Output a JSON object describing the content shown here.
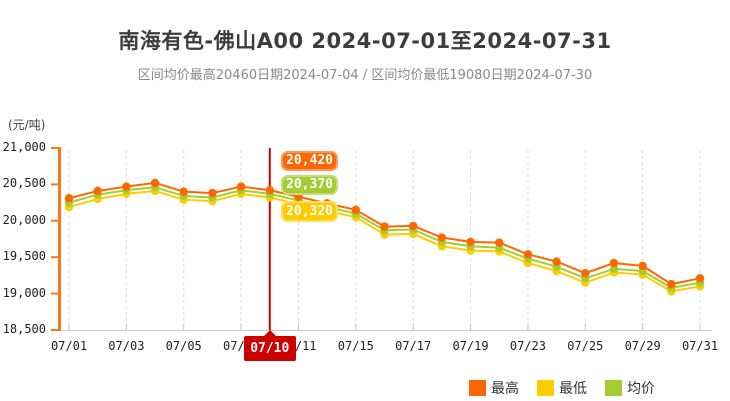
{
  "header": {
    "title": "南海有色-佛山A00 2024-07-01至2024-07-31",
    "subtitle": "区间均价最高20460日期2024-07-04 / 区间均价最低19080日期2024-07-30"
  },
  "chart_data": {
    "type": "line",
    "title": "南海有色-佛山A00 2024-07-01至2024-07-31",
    "unit_label": "(元/吨)",
    "x": [
      "07/01",
      "07/02",
      "07/03",
      "07/04",
      "07/05",
      "07/08",
      "07/09",
      "07/10",
      "07/11",
      "07/12",
      "07/15",
      "07/16",
      "07/17",
      "07/18",
      "07/19",
      "07/22",
      "07/23",
      "07/24",
      "07/25",
      "07/26",
      "07/29",
      "07/30",
      "07/31"
    ],
    "x_tick_labels_shown": [
      "07/01",
      "07/03",
      "07/05",
      "07/09",
      "07/11",
      "07/15",
      "07/17",
      "07/19",
      "07/23",
      "07/25",
      "07/29",
      "07/31"
    ],
    "series": [
      {
        "name": "最高",
        "color": "#ff6600",
        "values": [
          20310,
          20410,
          20470,
          20520,
          20400,
          20380,
          20470,
          20420,
          20330,
          20240,
          20150,
          19920,
          19930,
          19770,
          19710,
          19700,
          19540,
          19440,
          19280,
          19420,
          19380,
          19130,
          19210
        ]
      },
      {
        "name": "最低",
        "color": "#ffcc00",
        "values": [
          20190,
          20300,
          20370,
          20410,
          20290,
          20270,
          20370,
          20320,
          20230,
          20140,
          20050,
          19810,
          19820,
          19650,
          19590,
          19580,
          19420,
          19310,
          19150,
          19290,
          19260,
          19030,
          19100
        ]
      },
      {
        "name": "均价",
        "color": "#a3cd32",
        "values": [
          20250,
          20360,
          20420,
          20460,
          20340,
          20320,
          20420,
          20370,
          20280,
          20190,
          20100,
          19870,
          19880,
          19710,
          19650,
          19630,
          19480,
          19370,
          19210,
          19340,
          19310,
          19080,
          19150
        ]
      }
    ],
    "ylim": [
      18500,
      21000
    ],
    "y_ticks": [
      21000,
      20500,
      20000,
      19500,
      19000,
      18500
    ],
    "grid": "vertical-dashed",
    "legend_position": "bottom-right",
    "colors": {
      "axis": "#ff7519",
      "x_axis": "#c8c8c8",
      "grid": "#dcdcdc",
      "highlight_line": "#cc0000"
    },
    "highlight": {
      "x_label": "07/10",
      "最高": "20,420",
      "均价": "20,370",
      "最低": "20,320"
    }
  },
  "tooltip": {
    "date": "07/10",
    "high": "20,420",
    "avg": "20,370",
    "low": "20,320"
  },
  "legend": [
    {
      "label": "最高",
      "color": "#ff6600"
    },
    {
      "label": "最低",
      "color": "#ffcc00"
    },
    {
      "label": "均价",
      "color": "#a3cd32"
    }
  ]
}
